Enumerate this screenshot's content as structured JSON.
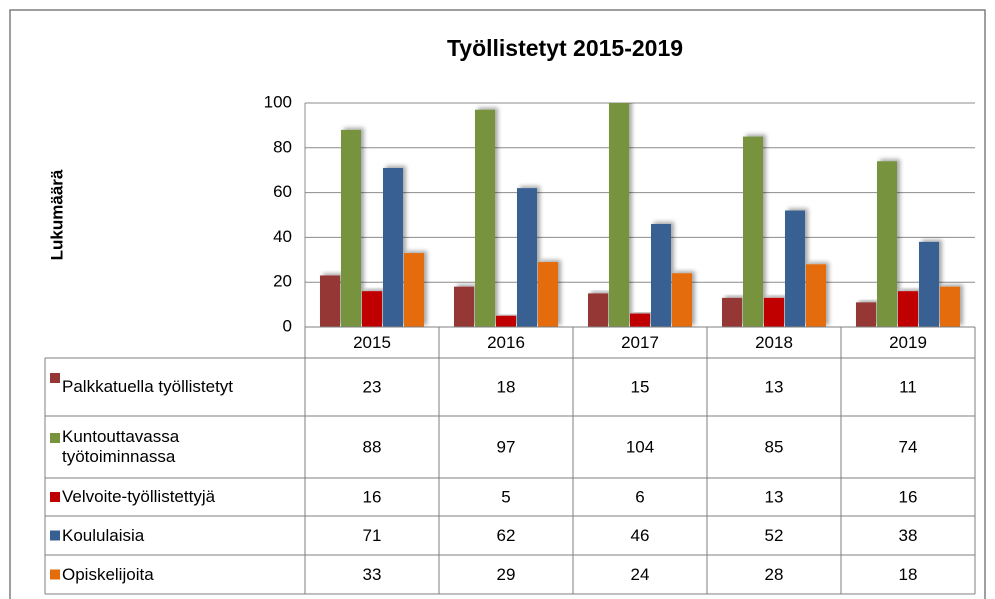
{
  "chart_data": {
    "type": "bar",
    "title": "Työllistetyt 2015-2019",
    "y_label": "Lukumäärä",
    "categories": [
      "2015",
      "2016",
      "2017",
      "2018",
      "2019"
    ],
    "series": [
      {
        "name": "Palkkatuella työllistetyt",
        "color": "#953735",
        "values": [
          23,
          18,
          15,
          13,
          11
        ]
      },
      {
        "name": "Kuntouttavassa työtoiminnassa",
        "color": "#77933c",
        "values": [
          88,
          97,
          104,
          85,
          74
        ]
      },
      {
        "name": "Velvoite-työllistettyjä",
        "color": "#c00000",
        "values": [
          16,
          5,
          6,
          13,
          16
        ]
      },
      {
        "name": "Koululaisia",
        "color": "#376092",
        "values": [
          71,
          62,
          46,
          52,
          38
        ]
      },
      {
        "name": "Opiskelijoita",
        "color": "#e46c0a",
        "values": [
          33,
          29,
          24,
          28,
          18
        ]
      }
    ],
    "ylim": [
      0,
      100
    ],
    "yticks": [
      0,
      20,
      40,
      60,
      80,
      100
    ],
    "grid": true
  }
}
